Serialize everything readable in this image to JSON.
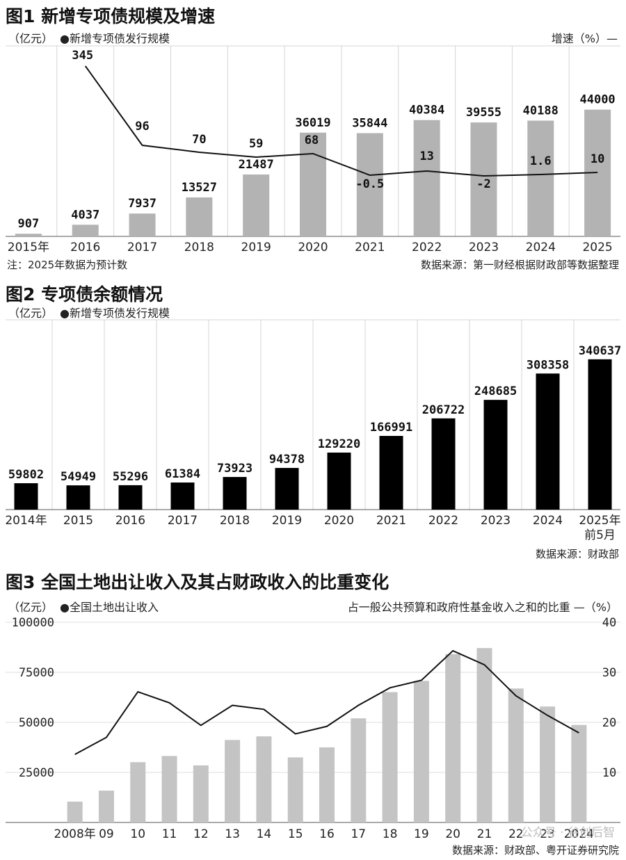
{
  "chart_data": [
    {
      "type": "bar",
      "title": "图1 新增专项债规模及增速",
      "left_unit": "（亿元）",
      "legend_bar": "●新增专项债发行规模",
      "right_unit": "增速（%）—",
      "categories": [
        "2015年",
        "2016",
        "2017",
        "2018",
        "2019",
        "2020",
        "2021",
        "2022",
        "2023",
        "2024",
        "2025"
      ],
      "series": [
        {
          "values": [
            907,
            4037,
            7937,
            13527,
            21487,
            36019,
            35844,
            40384,
            39555,
            40188,
            44000
          ]
        },
        {
          "values": [
            null,
            345,
            96,
            70,
            59,
            68,
            -0.5,
            13,
            -2,
            1.6,
            10
          ]
        }
      ],
      "bar_labels": [
        "907",
        "4037",
        "7937",
        "13527",
        "21487",
        "36019",
        "35844",
        "40384",
        "39555",
        "40188",
        "44000"
      ],
      "line_labels": [
        "",
        "345",
        "96",
        "70",
        "59",
        "68",
        "-0.5",
        "13",
        "-2",
        "1.6",
        "10"
      ],
      "note": "注：2025年数据为预计数",
      "source": "数据来源：第一财经根据财政部等数据整理",
      "bar_color": "#b3b3b3",
      "line_color": "#111111"
    },
    {
      "type": "bar",
      "title": "图2 专项债余额情况",
      "left_unit": "（亿元）",
      "legend_bar": "●新增专项债发行规模",
      "categories": [
        "2014年",
        "2015",
        "2016",
        "2017",
        "2018",
        "2019",
        "2020",
        "2021",
        "2022",
        "2023",
        "2024",
        "2025年"
      ],
      "category_line2": [
        "",
        "",
        "",
        "",
        "",
        "",
        "",
        "",
        "",
        "",
        "",
        "前5月"
      ],
      "values": [
        59802,
        54949,
        55296,
        61384,
        73923,
        94378,
        129220,
        166991,
        206722,
        248685,
        308358,
        340637
      ],
      "bar_labels": [
        "59802",
        "54949",
        "55296",
        "61384",
        "73923",
        "94378",
        "129220",
        "166991",
        "206722",
        "248685",
        "308358",
        "340637"
      ],
      "source": "数据来源：财政部",
      "bar_color": "#000000"
    },
    {
      "type": "bar",
      "title": "图3 全国土地出让收入及其占财政收入的比重变化",
      "left_unit": "（亿元）",
      "legend_bar": "●全国土地出让收入",
      "right_unit": "占一般公共预算和政府性基金收入之和的比重 —（%）",
      "categories": [
        "2008年",
        "09",
        "10",
        "11",
        "12",
        "13",
        "14",
        "15",
        "16",
        "17",
        "18",
        "19",
        "20",
        "21",
        "22",
        "23",
        "2024"
      ],
      "series": [
        {
          "values": [
            10400,
            15900,
            30100,
            33200,
            28500,
            41200,
            43000,
            32500,
            37500,
            52000,
            65100,
            70700,
            84100,
            87100,
            66900,
            57900,
            48700
          ]
        },
        {
          "values": [
            13.6,
            17.0,
            26.1,
            23.9,
            19.4,
            23.4,
            22.6,
            17.7,
            19.2,
            23.4,
            26.9,
            28.4,
            34.3,
            31.5,
            25.3,
            21.4,
            17.9
          ]
        }
      ],
      "y_ticks_left": [
        "100000",
        "75000",
        "50000",
        "25000"
      ],
      "y_ticks_right": [
        "40",
        "30",
        "20",
        "10"
      ],
      "source": "数据来源：财政部、粤开证券研究院",
      "bar_color": "#c4c4c4",
      "line_color": "#111111"
    }
  ],
  "watermark": "公众号 · 谷创后智"
}
